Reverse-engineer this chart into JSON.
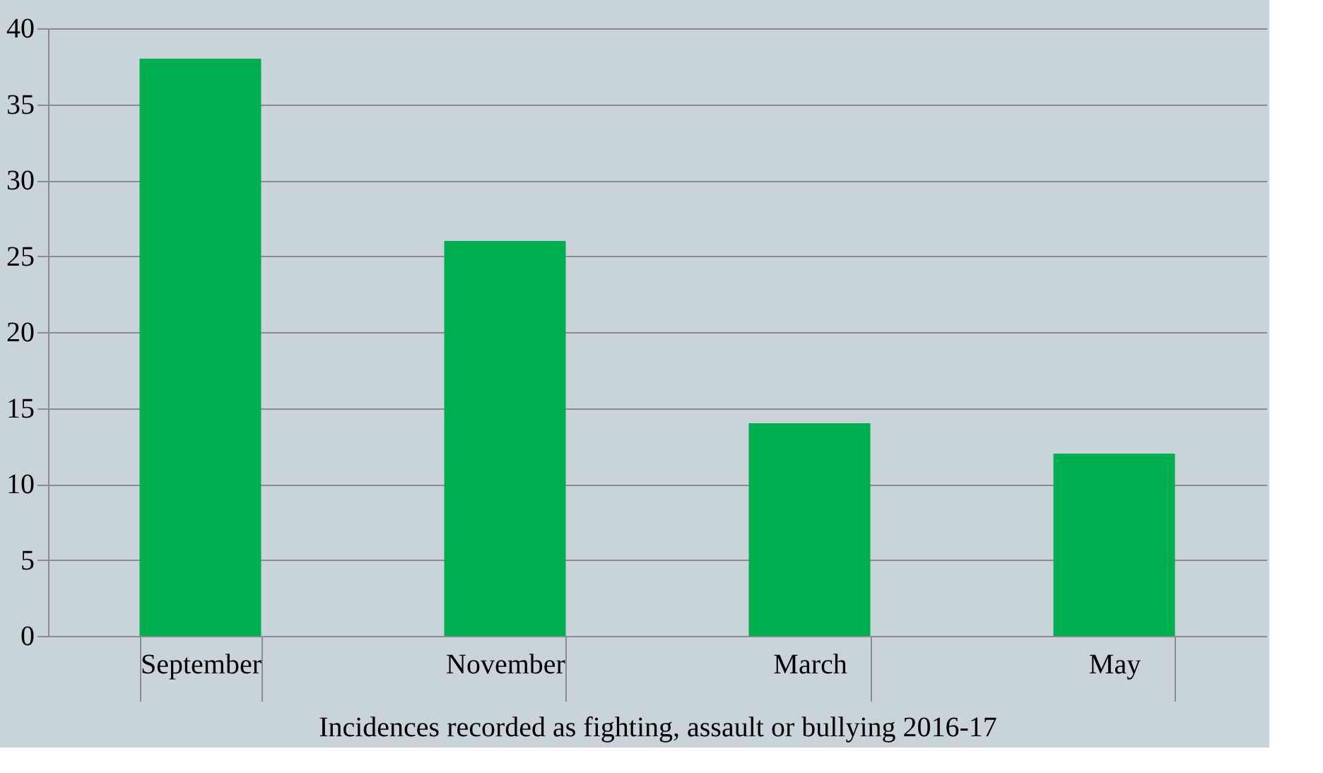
{
  "chart_data": {
    "type": "bar",
    "xlabel": "Incidences recorded as fighting, assault or bullying 2016-17",
    "categories": [
      "September",
      "November",
      "March",
      "May"
    ],
    "values": [
      38,
      26,
      14,
      12
    ],
    "color": "#00b050",
    "ylim": [
      0,
      40
    ],
    "yticks": [
      0,
      5,
      10,
      15,
      20,
      25,
      30,
      35,
      40
    ],
    "grid": "y"
  }
}
